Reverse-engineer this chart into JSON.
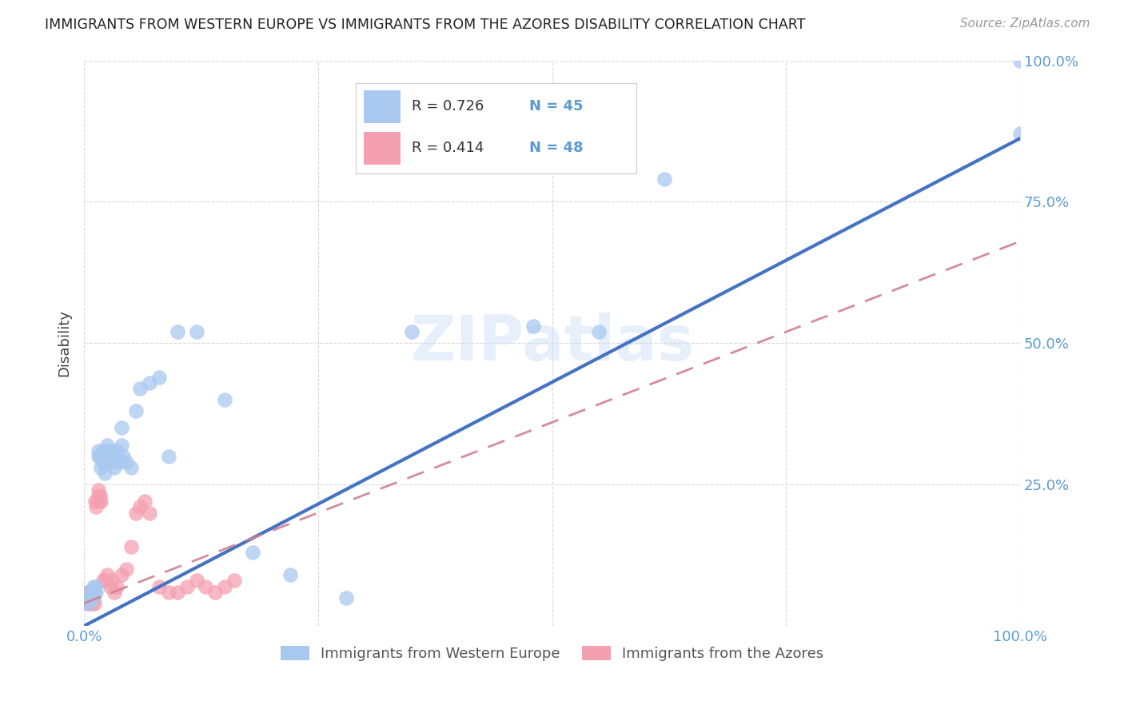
{
  "title": "IMMIGRANTS FROM WESTERN EUROPE VS IMMIGRANTS FROM THE AZORES DISABILITY CORRELATION CHART",
  "source": "Source: ZipAtlas.com",
  "ylabel": "Disability",
  "legend_blue_R": "R = 0.726",
  "legend_blue_N": "N = 45",
  "legend_pink_R": "R = 0.414",
  "legend_pink_N": "N = 48",
  "legend_blue_label": "Immigrants from Western Europe",
  "legend_pink_label": "Immigrants from the Azores",
  "watermark": "ZIPatlas",
  "blue_color": "#a8c8f0",
  "blue_line_color": "#4472c4",
  "pink_color": "#f4a0b0",
  "pink_line_color": "#d08090",
  "axis_color": "#5b9bd5",
  "blue_scatter_x": [
    0.003,
    0.005,
    0.006,
    0.008,
    0.01,
    0.01,
    0.012,
    0.013,
    0.015,
    0.015,
    0.017,
    0.018,
    0.02,
    0.02,
    0.022,
    0.025,
    0.025,
    0.027,
    0.028,
    0.03,
    0.032,
    0.035,
    0.038,
    0.04,
    0.04,
    0.042,
    0.045,
    0.05,
    0.055,
    0.06,
    0.07,
    0.08,
    0.09,
    0.1,
    0.12,
    0.15,
    0.18,
    0.22,
    0.28,
    0.35,
    0.48,
    0.55,
    0.62,
    1.0,
    1.0
  ],
  "blue_scatter_y": [
    0.06,
    0.04,
    0.05,
    0.05,
    0.07,
    0.06,
    0.07,
    0.06,
    0.3,
    0.31,
    0.3,
    0.28,
    0.31,
    0.29,
    0.27,
    0.3,
    0.32,
    0.31,
    0.29,
    0.3,
    0.28,
    0.31,
    0.29,
    0.35,
    0.32,
    0.3,
    0.29,
    0.28,
    0.38,
    0.42,
    0.43,
    0.44,
    0.3,
    0.52,
    0.52,
    0.4,
    0.13,
    0.09,
    0.05,
    0.52,
    0.53,
    0.52,
    0.79,
    1.0,
    0.87
  ],
  "pink_scatter_x": [
    0.002,
    0.003,
    0.003,
    0.004,
    0.004,
    0.005,
    0.005,
    0.006,
    0.006,
    0.007,
    0.007,
    0.008,
    0.008,
    0.009,
    0.01,
    0.01,
    0.011,
    0.012,
    0.013,
    0.014,
    0.015,
    0.015,
    0.016,
    0.017,
    0.018,
    0.02,
    0.022,
    0.025,
    0.028,
    0.03,
    0.032,
    0.035,
    0.04,
    0.045,
    0.05,
    0.055,
    0.06,
    0.065,
    0.07,
    0.08,
    0.09,
    0.1,
    0.11,
    0.12,
    0.13,
    0.14,
    0.15,
    0.16
  ],
  "pink_scatter_y": [
    0.05,
    0.05,
    0.04,
    0.05,
    0.06,
    0.04,
    0.05,
    0.06,
    0.05,
    0.06,
    0.05,
    0.06,
    0.04,
    0.05,
    0.06,
    0.05,
    0.04,
    0.22,
    0.21,
    0.22,
    0.23,
    0.24,
    0.22,
    0.23,
    0.22,
    0.08,
    0.08,
    0.09,
    0.07,
    0.08,
    0.06,
    0.07,
    0.09,
    0.1,
    0.14,
    0.2,
    0.21,
    0.22,
    0.2,
    0.07,
    0.06,
    0.06,
    0.07,
    0.08,
    0.07,
    0.06,
    0.07,
    0.08
  ],
  "blue_line_x0": 0.0,
  "blue_line_y0": 0.0,
  "blue_line_x1": 1.0,
  "blue_line_y1": 0.862,
  "pink_line_x0": 0.0,
  "pink_line_y0": 0.04,
  "pink_line_x1": 1.0,
  "pink_line_y1": 0.68,
  "xlim": [
    0,
    1.0
  ],
  "ylim": [
    0,
    1.0
  ],
  "xticks": [
    0,
    0.25,
    0.5,
    0.75,
    1.0
  ],
  "xtick_labels": [
    "0.0%",
    "",
    "",
    "",
    "100.0%"
  ],
  "yticks": [
    0,
    0.25,
    0.5,
    0.75,
    1.0
  ],
  "ytick_labels_right": [
    "",
    "25.0%",
    "50.0%",
    "75.0%",
    "100.0%"
  ]
}
